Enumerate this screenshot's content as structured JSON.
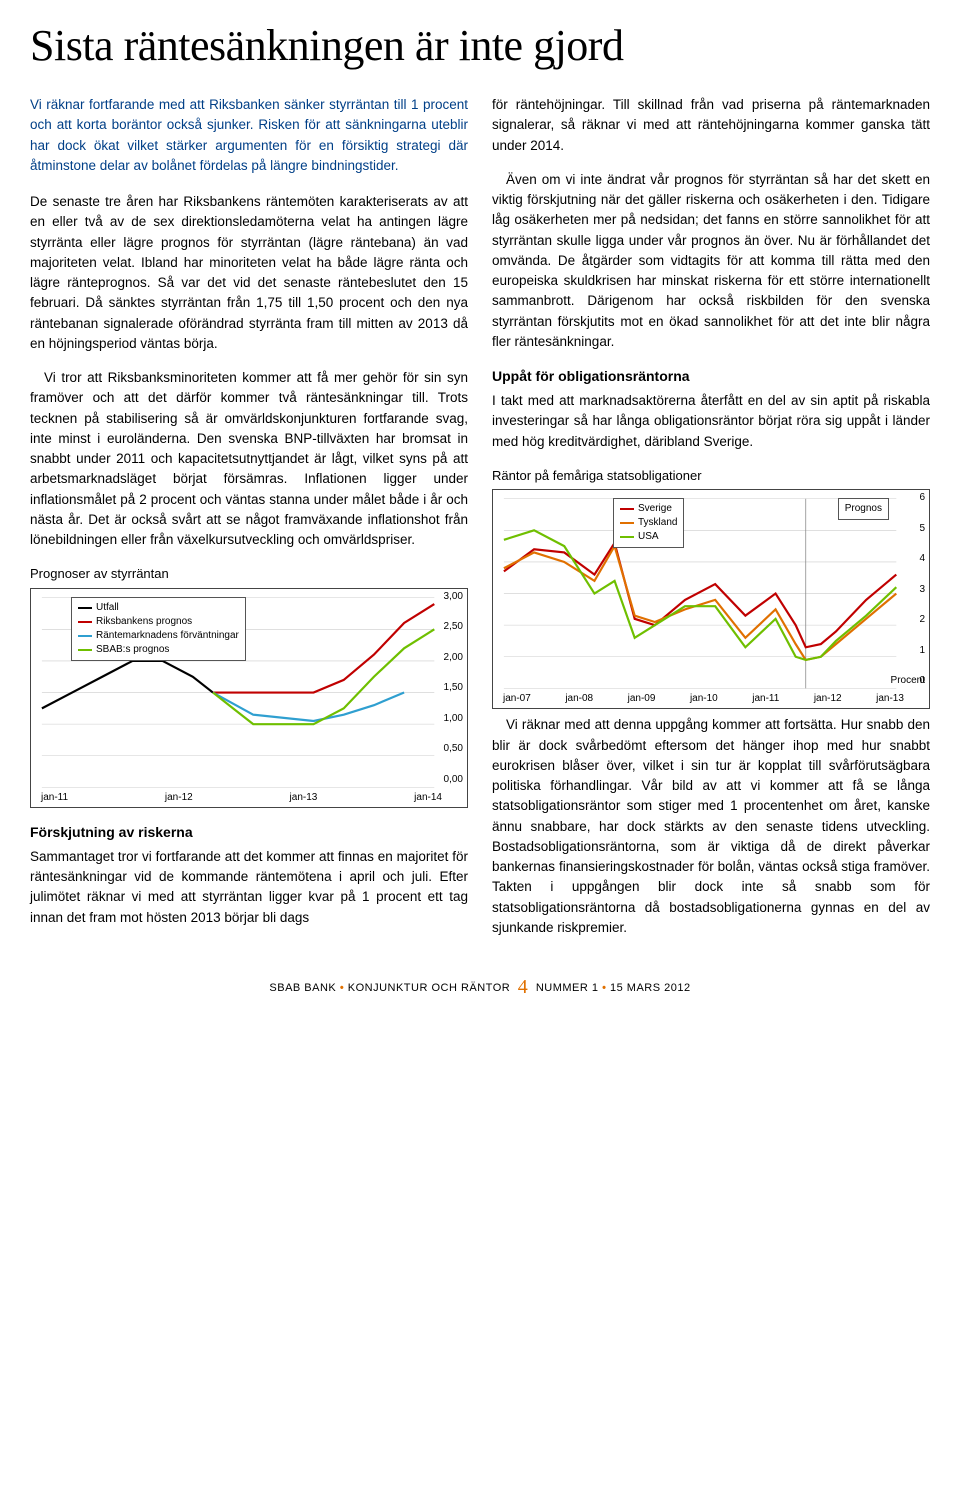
{
  "title": "Sista räntesänkningen är inte gjord",
  "lead": "Vi räknar fortfarande med att Riksbanken sänker styrräntan till 1 procent och att korta boräntor också sjunker. Risken för att sänkningarna uteblir har dock ökat vilket stärker argumenten för en försiktig strategi där åtminstone delar av bolånet fördelas på längre bindningstider.",
  "col1": {
    "p1": "De senaste tre åren har Riksbankens räntemöten karakteriserats av att en eller två av de sex direktionsledamöterna velat ha antingen lägre styrränta eller lägre prognos för styrräntan (lägre räntebana) än vad majoriteten velat. Ibland har minoriteten velat ha både lägre ränta och lägre ränteprognos. Så var det vid det senaste räntebeslutet den 15 februari. Då sänktes styrräntan från 1,75 till 1,50 procent och den nya räntebanan signalerade oförändrad styrränta fram till mitten av 2013 då en höjningsperiod väntas börja.",
    "p2": "Vi tror att Riksbanksminoriteten kommer att få mer gehör för sin syn framöver och att det därför kommer två räntesänkningar till. Trots tecknen på stabilisering så är omvärldskonjunkturen fortfarande svag, inte minst i euroländerna. Den svenska BNP-tillväxten har bromsat in snabbt under 2011 och kapacitetsutnyttjandet är lågt, vilket syns på att arbetsmarknadsläget börjat försämras. Inflationen ligger under inflationsmålet på 2 procent och väntas stanna under målet både i år och nästa år. Det är också svårt att se något framväxande inflationshot från lönebildningen eller från växelkursutveckling och omvärldspriser."
  },
  "chart1": {
    "caption": "Prognoser av styrräntan",
    "type": "line",
    "legend": [
      {
        "label": "Utfall",
        "color": "#000000"
      },
      {
        "label": "Riksbankens prognos",
        "color": "#c00000"
      },
      {
        "label": "Räntemarknadens förväntningar",
        "color": "#2f9fd0"
      },
      {
        "label": "SBAB:s prognos",
        "color": "#6fbf00"
      }
    ],
    "x_labels": [
      "jan-11",
      "jan-12",
      "jan-13",
      "jan-14"
    ],
    "y_labels": [
      "3,00",
      "2,50",
      "2,00",
      "1,50",
      "1,00",
      "0,50",
      "0,00"
    ],
    "ylim": [
      0,
      3
    ],
    "series": {
      "utfall": {
        "color": "#000000",
        "points": [
          [
            0,
            1.25
          ],
          [
            3,
            1.5
          ],
          [
            6,
            1.75
          ],
          [
            9,
            2.0
          ],
          [
            12,
            2.0
          ],
          [
            15,
            1.75
          ],
          [
            17,
            1.5
          ]
        ]
      },
      "riksbanken": {
        "color": "#c00000",
        "points": [
          [
            17,
            1.5
          ],
          [
            21,
            1.5
          ],
          [
            27,
            1.5
          ],
          [
            30,
            1.7
          ],
          [
            33,
            2.1
          ],
          [
            36,
            2.6
          ],
          [
            39,
            2.9
          ]
        ]
      },
      "marknad": {
        "color": "#2f9fd0",
        "points": [
          [
            17,
            1.5
          ],
          [
            21,
            1.15
          ],
          [
            27,
            1.05
          ],
          [
            30,
            1.15
          ],
          [
            33,
            1.3
          ],
          [
            36,
            1.5
          ]
        ]
      },
      "sbab": {
        "color": "#6fbf00",
        "points": [
          [
            17,
            1.5
          ],
          [
            19,
            1.25
          ],
          [
            21,
            1.0
          ],
          [
            27,
            1.0
          ],
          [
            30,
            1.25
          ],
          [
            33,
            1.75
          ],
          [
            36,
            2.2
          ],
          [
            39,
            2.5
          ]
        ]
      }
    }
  },
  "section1": {
    "heading": "Förskjutning av riskerna",
    "text": "Sammantaget tror vi fortfarande att det kommer att finnas en majoritet för räntesänkningar vid de kommande räntemötena i april och juli. Efter julimötet räknar vi med att styrräntan ligger kvar på 1 procent ett tag innan det fram mot hösten 2013 börjar bli dags"
  },
  "col2": {
    "p1": "för räntehöjningar. Till skillnad från vad priserna på räntemarknaden signalerar, så räknar vi med att räntehöjningarna kommer ganska tätt under 2014.",
    "p2": "Även om vi inte ändrat vår prognos för styrräntan så har det skett en viktig förskjutning när det gäller riskerna och osäkerheten i den. Tidigare låg osäkerheten mer på nedsidan; det fanns en större sannolikhet för att styrräntan skulle ligga under vår prognos än över. Nu är förhållandet det omvända. De åtgärder som vidtagits för att komma till rätta med den europeiska skuldkrisen har minskat riskerna för ett större internationellt sammanbrott. Därigenom har också riskbilden för den svenska styrräntan förskjutits mot en ökad sannolikhet för att det inte blir några fler räntesänkningar."
  },
  "section2": {
    "heading": "Uppåt för obligationsräntorna",
    "text": "I takt med att marknadsaktörerna återfått en del av sin aptit på riskabla investeringar så har långa obligationsräntor börjat röra sig uppåt i länder med hög kreditvärdighet, däribland Sverige."
  },
  "chart2": {
    "caption": "Räntor på femåriga statsobligationer",
    "type": "line",
    "legend": [
      {
        "label": "Sverige",
        "color": "#c00000"
      },
      {
        "label": "Tyskland",
        "color": "#e07000"
      },
      {
        "label": "USA",
        "color": "#6fbf00"
      }
    ],
    "prognos_label": "Prognos",
    "procent_label": "Procent",
    "x_labels": [
      "jan-07",
      "jan-08",
      "jan-09",
      "jan-10",
      "jan-11",
      "jan-12",
      "jan-13"
    ],
    "y_labels": [
      "6",
      "5",
      "4",
      "3",
      "2",
      "1",
      "0"
    ],
    "ylim": [
      0,
      6
    ],
    "prognos_x": 60,
    "series": {
      "sverige": {
        "color": "#c00000",
        "points": [
          [
            0,
            3.7
          ],
          [
            6,
            4.4
          ],
          [
            12,
            4.3
          ],
          [
            18,
            3.6
          ],
          [
            22,
            4.6
          ],
          [
            26,
            2.2
          ],
          [
            30,
            2.0
          ],
          [
            36,
            2.8
          ],
          [
            42,
            3.3
          ],
          [
            48,
            2.3
          ],
          [
            54,
            3.0
          ],
          [
            58,
            2.0
          ],
          [
            60,
            1.3
          ],
          [
            63,
            1.4
          ],
          [
            66,
            1.8
          ],
          [
            72,
            2.8
          ],
          [
            78,
            3.6
          ]
        ]
      },
      "tyskland": {
        "color": "#e07000",
        "points": [
          [
            0,
            3.8
          ],
          [
            6,
            4.3
          ],
          [
            12,
            4.0
          ],
          [
            18,
            3.4
          ],
          [
            22,
            4.5
          ],
          [
            26,
            2.3
          ],
          [
            30,
            2.1
          ],
          [
            36,
            2.5
          ],
          [
            42,
            2.8
          ],
          [
            48,
            1.6
          ],
          [
            54,
            2.5
          ],
          [
            58,
            1.4
          ],
          [
            60,
            0.9
          ],
          [
            63,
            1.0
          ],
          [
            66,
            1.4
          ],
          [
            72,
            2.2
          ],
          [
            78,
            3.0
          ]
        ]
      },
      "usa": {
        "color": "#6fbf00",
        "points": [
          [
            0,
            4.7
          ],
          [
            6,
            5.0
          ],
          [
            12,
            4.5
          ],
          [
            18,
            3.0
          ],
          [
            22,
            3.4
          ],
          [
            26,
            1.6
          ],
          [
            30,
            2.0
          ],
          [
            36,
            2.6
          ],
          [
            42,
            2.6
          ],
          [
            48,
            1.3
          ],
          [
            54,
            2.2
          ],
          [
            58,
            1.0
          ],
          [
            60,
            0.9
          ],
          [
            63,
            1.0
          ],
          [
            66,
            1.5
          ],
          [
            72,
            2.3
          ],
          [
            78,
            3.2
          ]
        ]
      }
    }
  },
  "col2_end": {
    "p1": "Vi räknar med att denna uppgång kommer att fortsätta. Hur snabb den blir är dock svårbedömt eftersom det hänger ihop med hur snabbt eurokrisen blåser över, vilket i sin tur är kopplat till svårförutsägbara politiska förhandlingar. Vår bild av att vi kommer att få se långa statsobligationsräntor som stiger med 1 procentenhet om året, kanske ännu snabbare, har dock stärkts av den senaste tidens utveckling. Bostadsobligationsräntorna, som är viktiga då de direkt påverkar bankernas finansieringskostnader för bolån, väntas också stiga framöver. Takten i uppgången blir dock inte så snabb som för statsobligationsräntorna då bostadsobligationerna gynnas en del av sjunkande riskpremier."
  },
  "footer": {
    "left": "SBAB BANK",
    "orange1": "•",
    "mid": "KONJUNKTUR OCH RÄNTOR",
    "page": "4",
    "right": "NUMMER 1",
    "orange2": "•",
    "date": "15 MARS 2012"
  }
}
